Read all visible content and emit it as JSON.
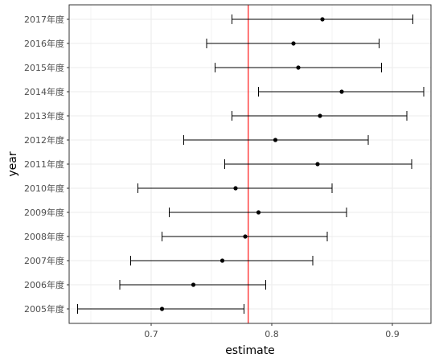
{
  "chart_data": {
    "type": "scatter",
    "subtype": "forest-plot-with-error-bars",
    "xlabel": "estimate",
    "ylabel": "year",
    "xlim": [
      0.632,
      0.932
    ],
    "x_ticks": [
      0.7,
      0.8,
      0.9
    ],
    "x_tick_labels": [
      "0.7",
      "0.8",
      "0.9"
    ],
    "categories": [
      "2005年度",
      "2006年度",
      "2007年度",
      "2008年度",
      "2009年度",
      "2010年度",
      "2011年度",
      "2012年度",
      "2013年度",
      "2014年度",
      "2015年度",
      "2016年度",
      "2017年度"
    ],
    "series": [
      {
        "estimate": [
          0.709,
          0.735,
          0.759,
          0.778,
          0.789,
          0.77,
          0.838,
          0.803,
          0.84,
          0.858,
          0.822,
          0.818,
          0.842
        ],
        "lower": [
          0.639,
          0.674,
          0.683,
          0.709,
          0.715,
          0.689,
          0.761,
          0.727,
          0.767,
          0.789,
          0.753,
          0.746,
          0.767
        ],
        "upper": [
          0.777,
          0.795,
          0.834,
          0.846,
          0.862,
          0.85,
          0.916,
          0.88,
          0.912,
          0.926,
          0.891,
          0.889,
          0.917
        ]
      }
    ],
    "reference_line": {
      "x": 0.7805,
      "color": "#ff0000"
    },
    "grid": true,
    "legend": "none",
    "colors": {
      "point": "#000000",
      "errorbar": "#000000",
      "grid": "#ebebeb",
      "panel_border": "#333333"
    }
  }
}
